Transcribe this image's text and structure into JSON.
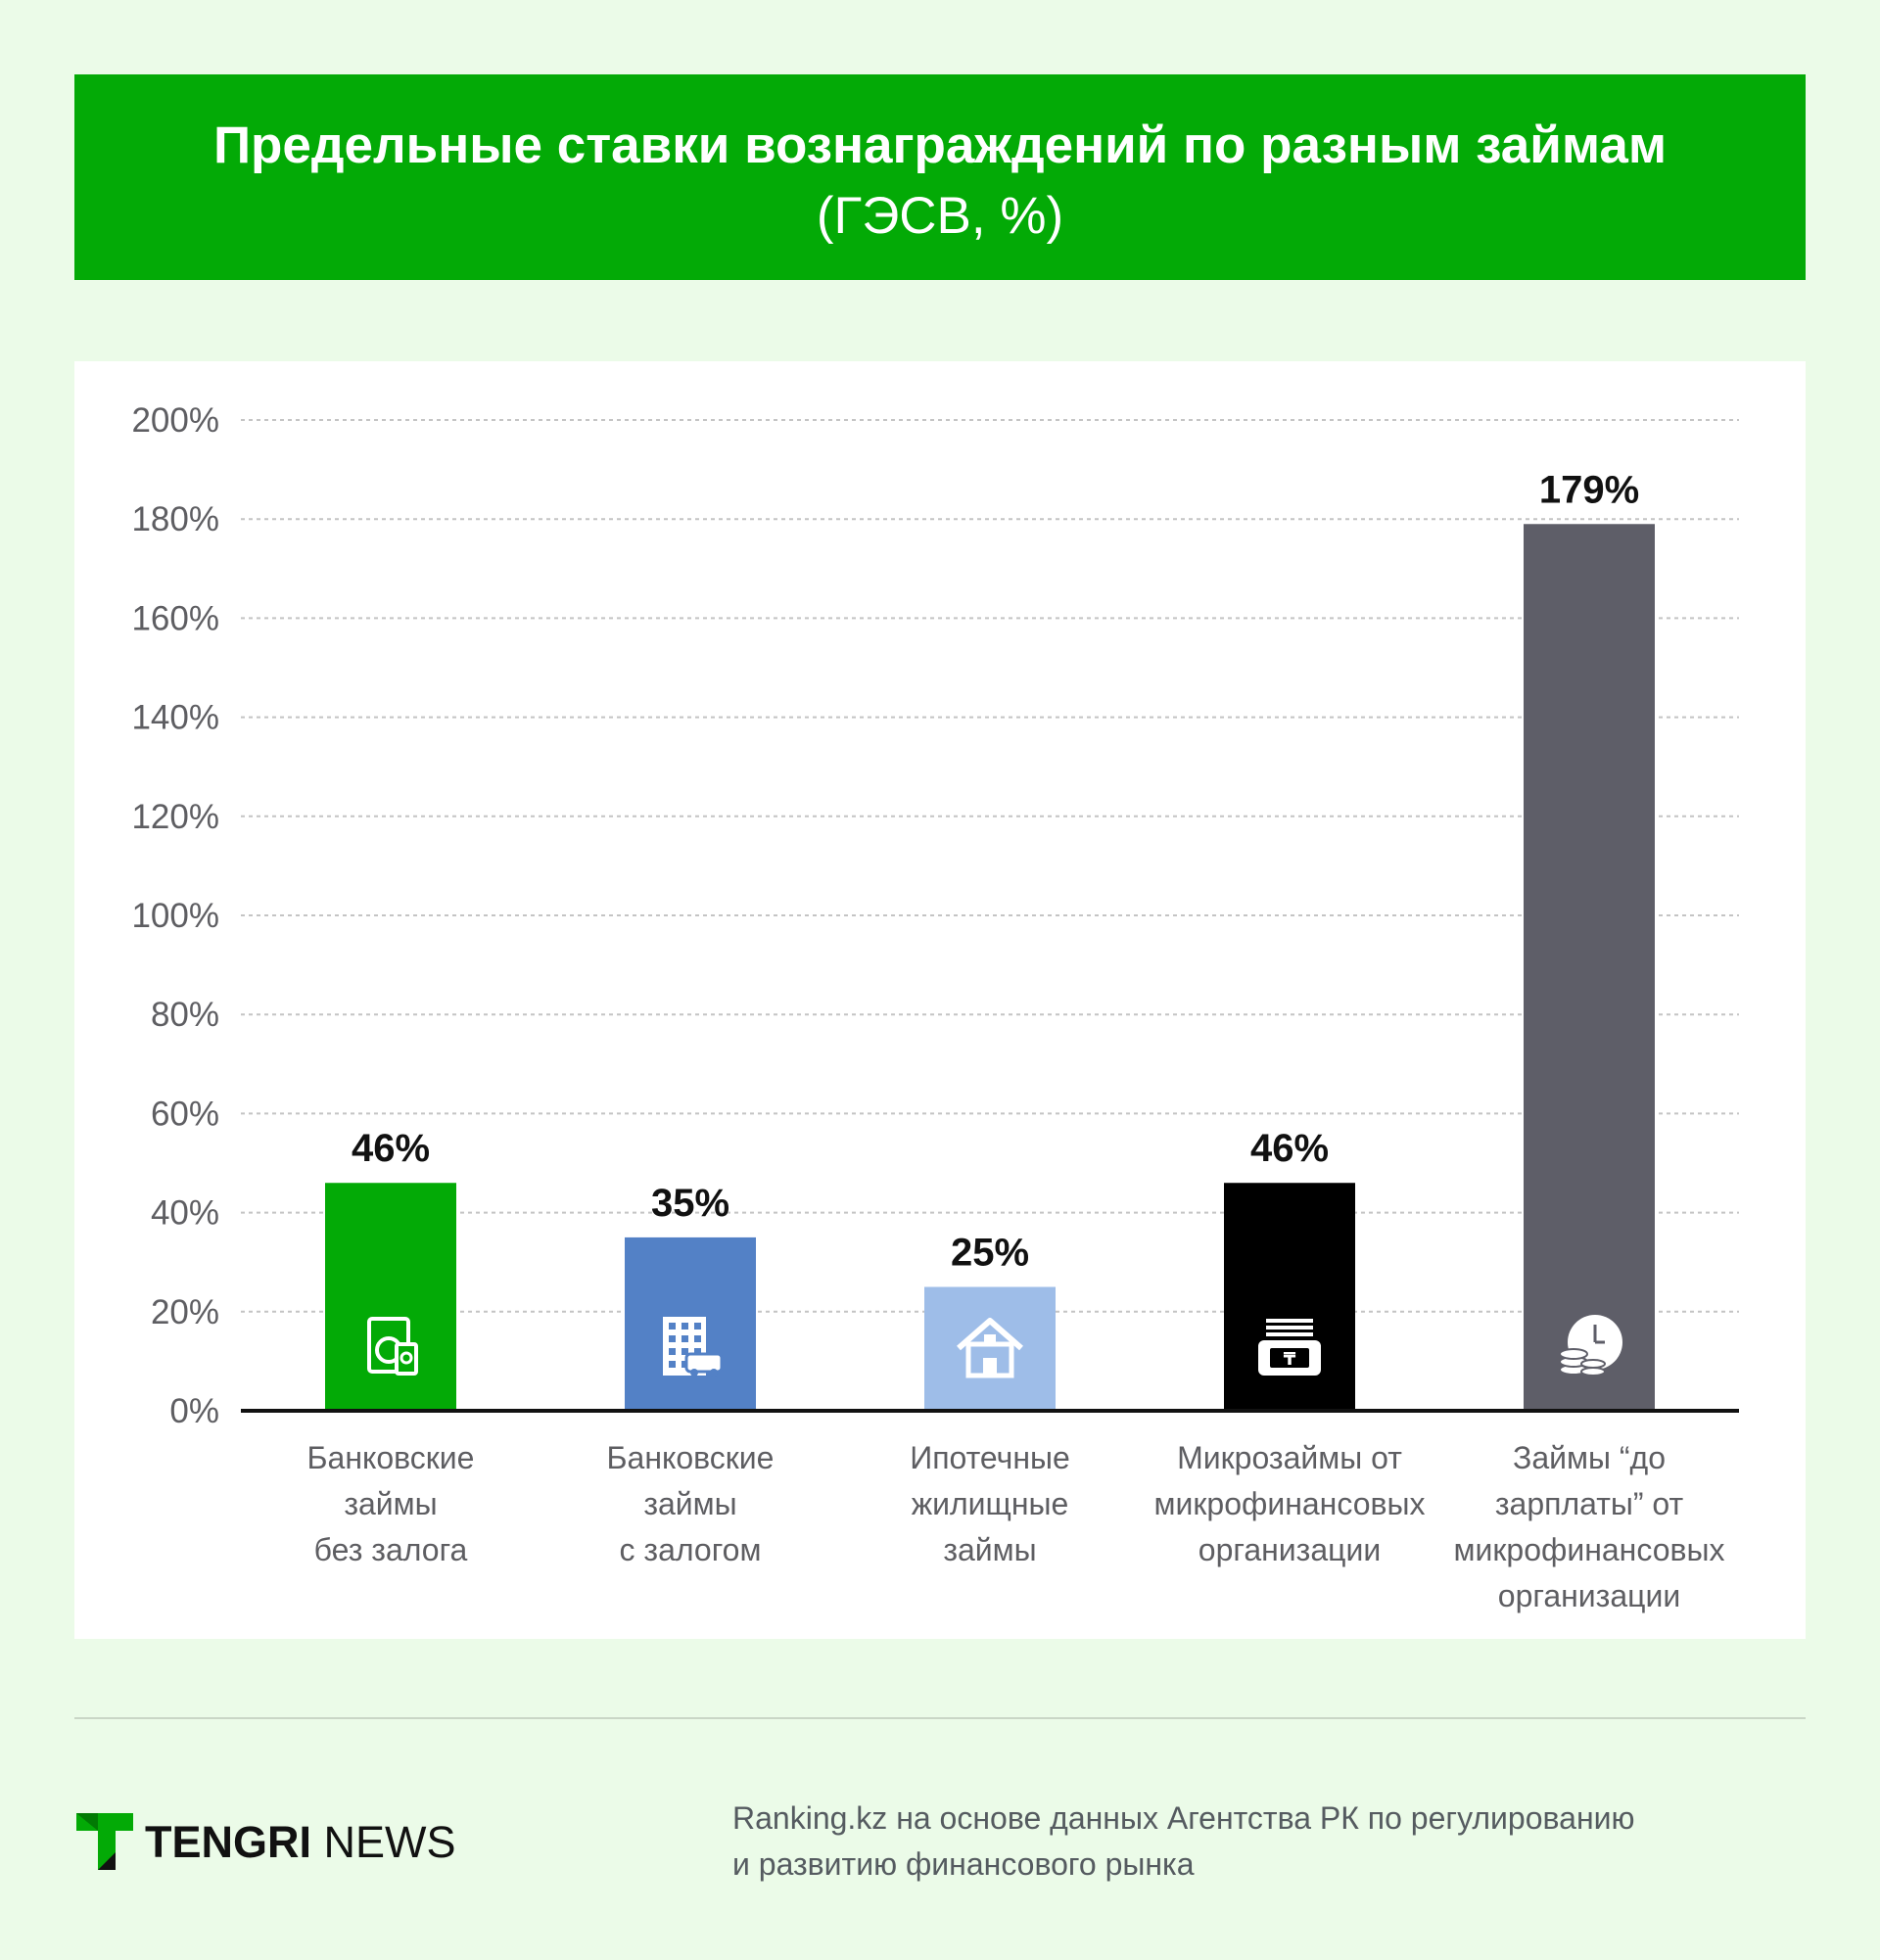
{
  "header": {
    "title": "Предельные ставки вознаграждений по разным займам",
    "subtitle": "(ГЭСВ, %)"
  },
  "chart_data": {
    "type": "bar",
    "title": "Предельные ставки вознаграждений по разным займам",
    "subtitle": "(ГЭСВ, %)",
    "xlabel": "",
    "ylabel": "",
    "ylim": [
      0,
      200
    ],
    "yticks": [
      0,
      20,
      40,
      60,
      80,
      100,
      120,
      140,
      160,
      180,
      200
    ],
    "ytick_labels": [
      "0%",
      "20%",
      "40%",
      "60%",
      "80%",
      "100%",
      "120%",
      "140%",
      "160%",
      "180%",
      "200%"
    ],
    "grid": true,
    "legend": "none",
    "categories": [
      [
        "Банковские",
        "займы",
        "без залога"
      ],
      [
        "Банковские",
        "займы",
        "с залогом"
      ],
      [
        "Ипотечные",
        "жилищные",
        "займы"
      ],
      [
        "Микрозаймы от",
        "микрофинансовых",
        "организации"
      ],
      [
        "Займы “до",
        "зарплаты” от",
        "микрофинансовых",
        "организации"
      ]
    ],
    "values": [
      46,
      35,
      25,
      46,
      179
    ],
    "value_labels": [
      "46%",
      "35%",
      "25%",
      "46%",
      "179%"
    ],
    "colors": [
      "#03aa06",
      "#5381c6",
      "#9ebde8",
      "#000000",
      "#5e5e68"
    ],
    "icons": [
      "appliances-icon",
      "building-car-icon",
      "house-icon",
      "cash-register-icon",
      "clock-coins-icon"
    ]
  },
  "footer": {
    "brand_bold": "TENGRI",
    "brand_regular": " NEWS",
    "source_line1": "Ranking.kz на основе данных Агентства РК по регулированию",
    "source_line2": "и развитию финансового рынка"
  }
}
